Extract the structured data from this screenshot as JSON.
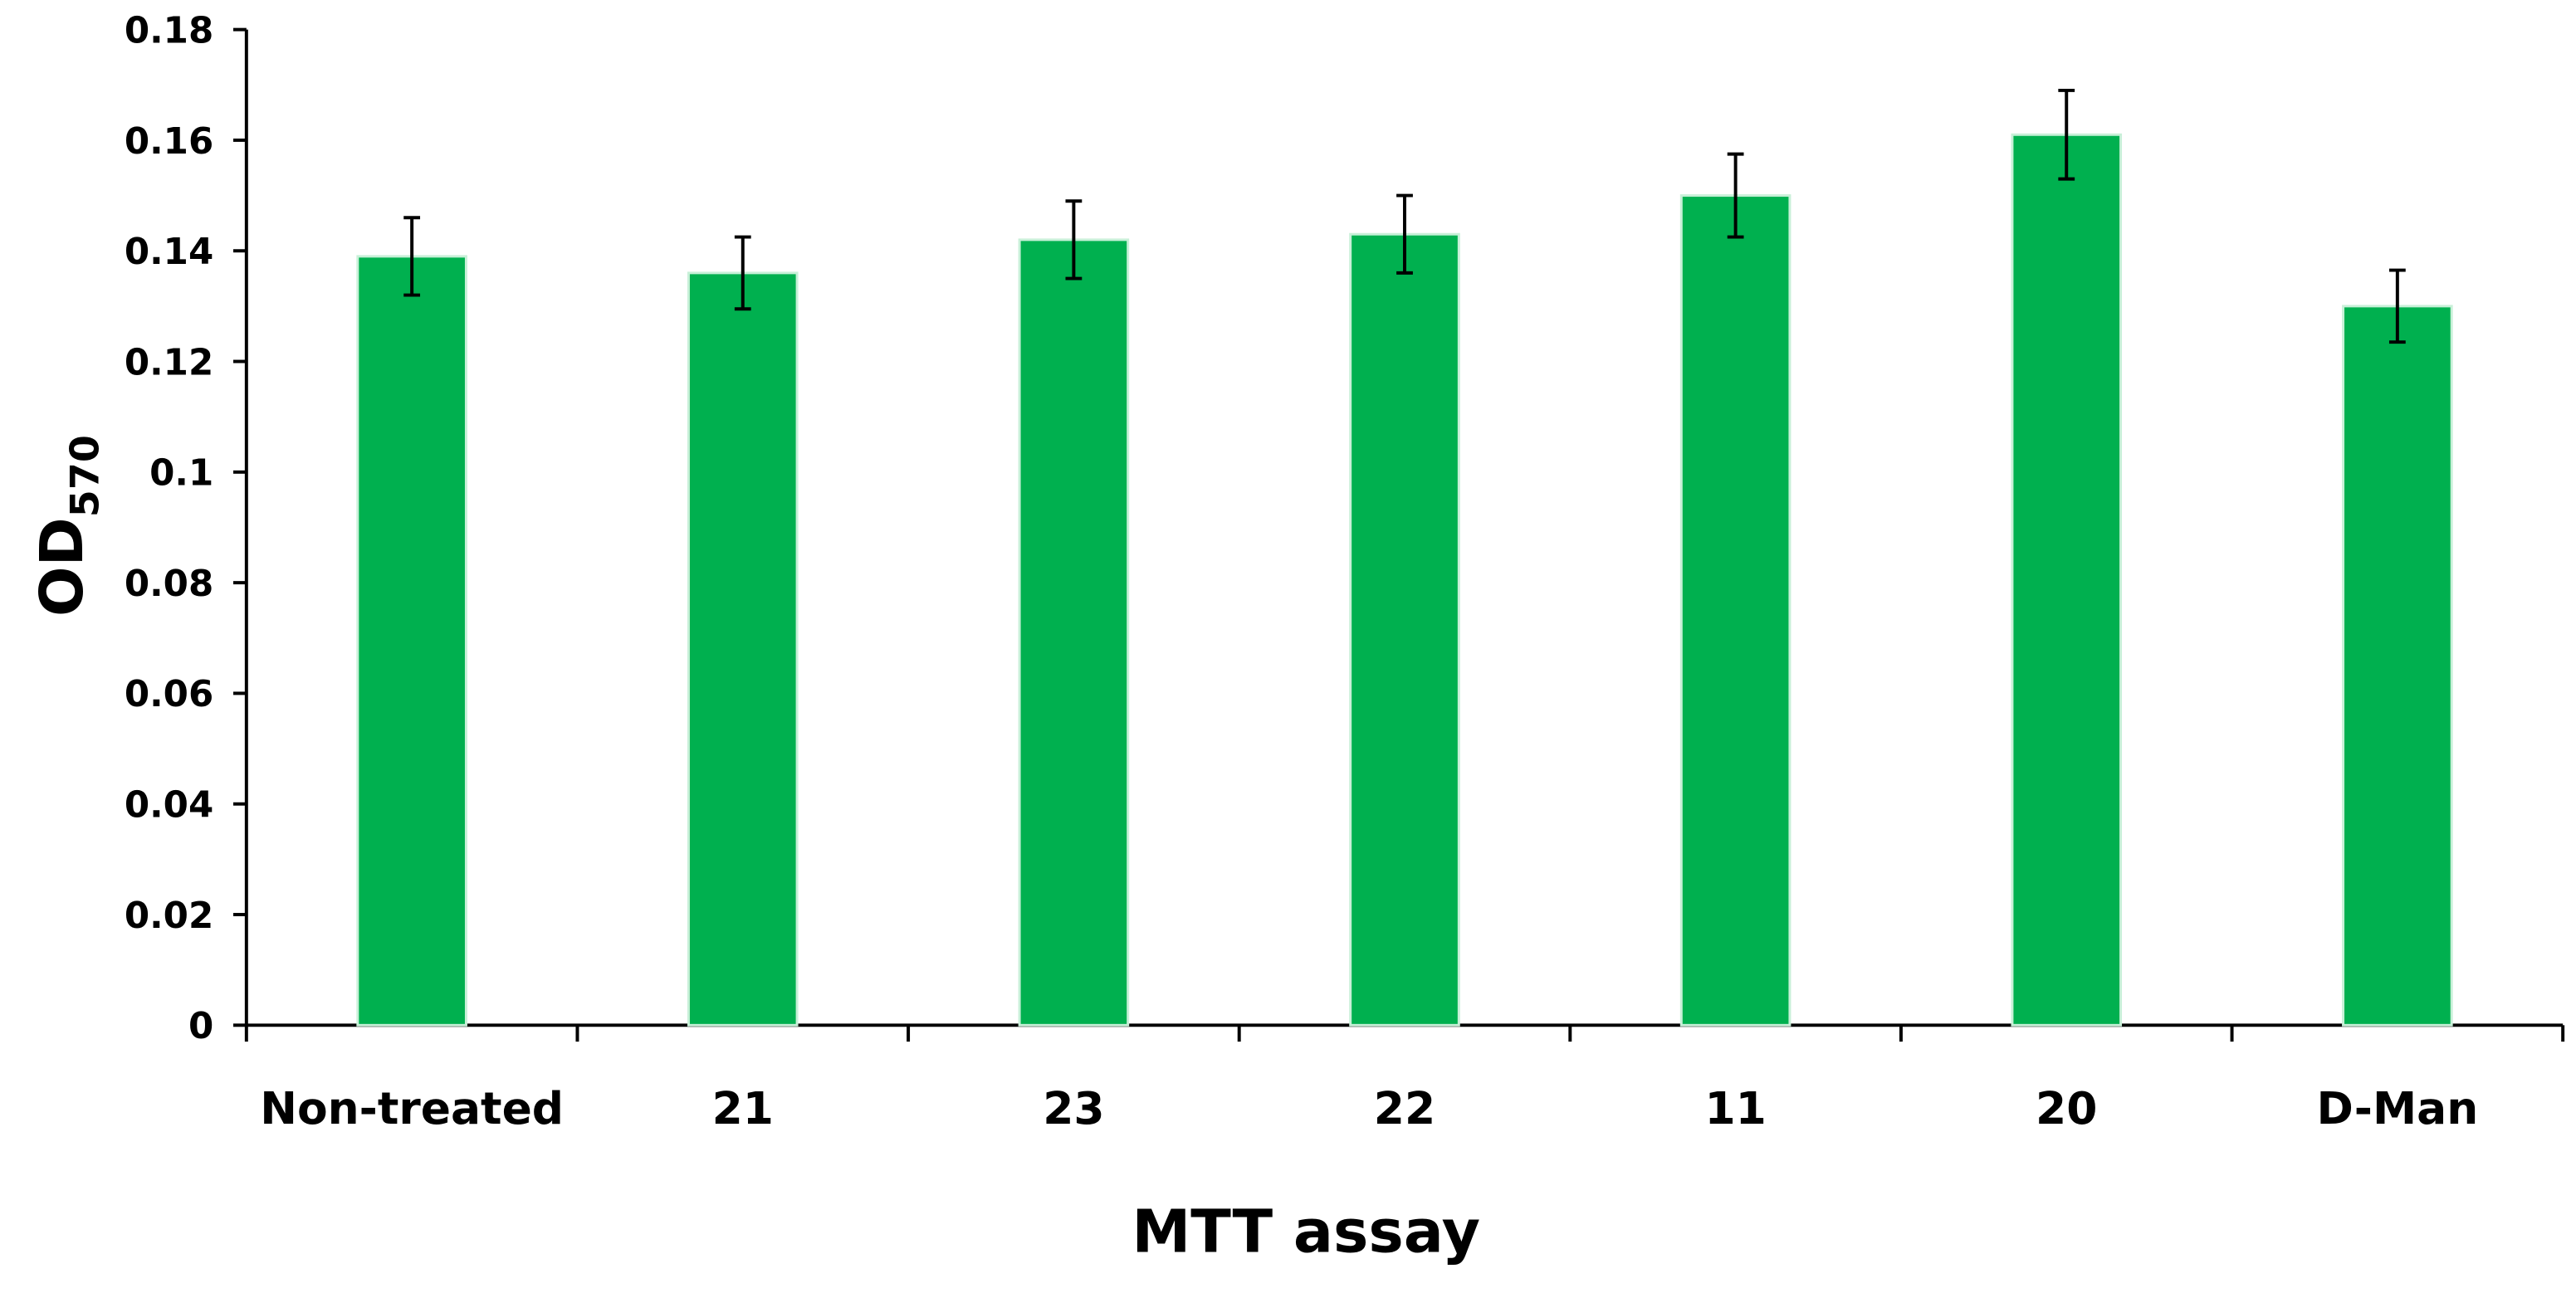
{
  "chart_data": {
    "type": "bar",
    "xlabel": "MTT assay",
    "ylabel": {
      "text": "OD",
      "subscript": "570"
    },
    "categories": [
      "Non-treated",
      "21",
      "23",
      "22",
      "11",
      "20",
      "D-Man"
    ],
    "values": [
      0.139,
      0.136,
      0.142,
      0.143,
      0.15,
      0.161,
      0.13
    ],
    "errors": [
      0.007,
      0.0065,
      0.007,
      0.007,
      0.0075,
      0.008,
      0.0065
    ],
    "color": "#00b04f",
    "ylim": [
      0,
      0.18
    ],
    "yticks": [
      0,
      0.02,
      0.04,
      0.06,
      0.08,
      0.1,
      0.12,
      0.14,
      0.16,
      0.18
    ],
    "grid": false
  }
}
